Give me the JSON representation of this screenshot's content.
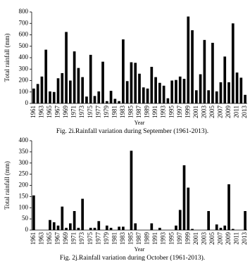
{
  "chart_data": [
    {
      "type": "bar",
      "title": "Fig. 2i.Rainfall variation during September (1961-2013).",
      "x_label": "Year",
      "y_label": "Total rainfall (mm)",
      "color": "#000000",
      "categories": [
        "1961",
        null,
        "1963",
        null,
        "1965",
        null,
        "1967",
        null,
        "1969",
        null,
        "1971",
        null,
        "1973",
        null,
        "1975",
        null,
        "1977",
        null,
        "1979",
        null,
        "1981",
        null,
        "1983",
        null,
        "1985",
        null,
        "1987",
        null,
        "1989",
        null,
        "1991",
        null,
        "1993",
        null,
        "1995",
        null,
        "1997",
        null,
        "1999",
        null,
        "2001",
        null,
        "2003",
        null,
        "2005",
        null,
        "2007",
        null,
        "2009",
        null,
        "2011",
        null,
        "2013"
      ],
      "values": [
        130,
        170,
        235,
        470,
        105,
        100,
        220,
        265,
        625,
        200,
        455,
        310,
        230,
        60,
        425,
        65,
        105,
        365,
        20,
        110,
        40,
        20,
        560,
        195,
        360,
        355,
        260,
        140,
        130,
        320,
        230,
        180,
        155,
        45,
        200,
        205,
        235,
        215,
        760,
        640,
        115,
        255,
        555,
        115,
        530,
        105,
        185,
        410,
        185,
        700,
        270,
        225,
        75
      ],
      "ylim": [
        0,
        800
      ],
      "yticks": [
        0,
        100,
        200,
        300,
        400,
        500,
        600,
        700,
        800
      ]
    },
    {
      "type": "bar",
      "title": "Fig. 2j.Rainfall variation during October (1961-2013).",
      "x_label": "Year",
      "y_label": "Total rainfall (mm)",
      "color": "#000000",
      "categories": [
        "1961",
        null,
        "1963",
        null,
        "1965",
        null,
        "1967",
        null,
        "1969",
        null,
        "1971",
        null,
        "1973",
        null,
        "1975",
        null,
        "1977",
        null,
        "1979",
        null,
        "1981",
        null,
        "1983",
        null,
        "1985",
        null,
        "1987",
        null,
        "1989",
        null,
        "1991",
        null,
        "1993",
        null,
        "1995",
        null,
        "1997",
        null,
        "1999",
        null,
        "2001",
        null,
        "2003",
        null,
        "2005",
        null,
        "2007",
        null,
        "2009",
        null,
        "2011",
        null,
        "2013"
      ],
      "values": [
        155,
        0,
        0,
        0,
        45,
        35,
        20,
        105,
        10,
        30,
        85,
        10,
        140,
        0,
        10,
        10,
        40,
        0,
        20,
        10,
        0,
        15,
        15,
        0,
        355,
        30,
        0,
        0,
        0,
        30,
        0,
        10,
        0,
        0,
        0,
        20,
        90,
        290,
        190,
        5,
        0,
        0,
        0,
        85,
        0,
        25,
        10,
        20,
        205,
        5,
        0,
        0,
        85
      ],
      "ylim": [
        0,
        400
      ],
      "yticks": [
        0,
        50,
        100,
        150,
        200,
        250,
        300,
        350,
        400
      ]
    }
  ]
}
